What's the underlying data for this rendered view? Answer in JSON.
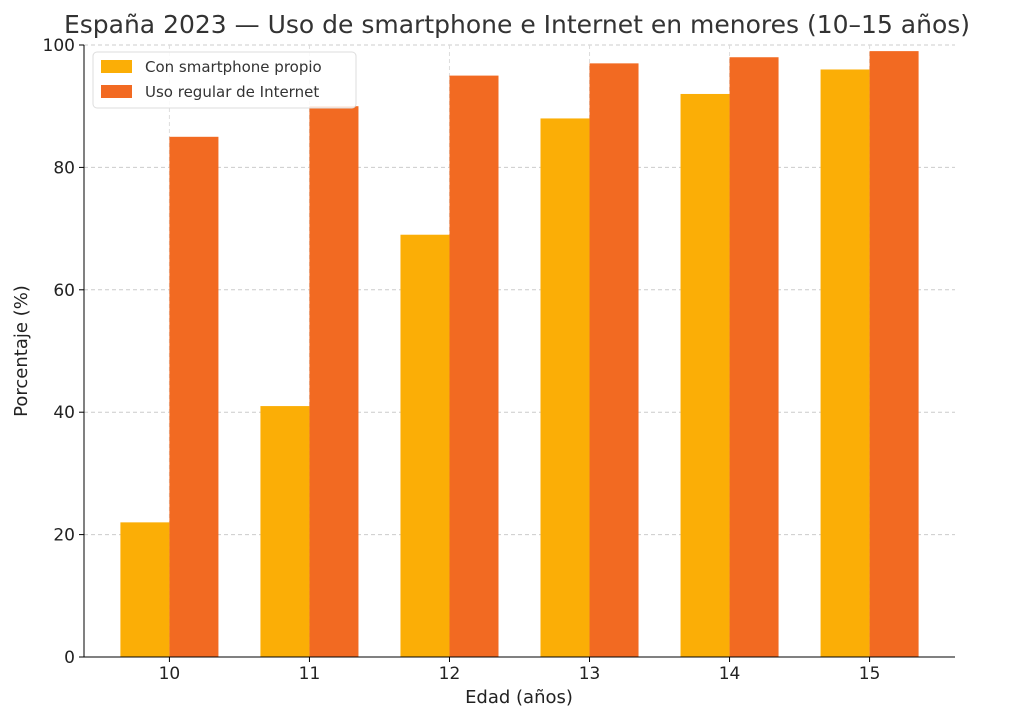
{
  "chart_data": {
    "type": "bar",
    "title": "España 2023 — Uso de smartphone e Internet en menores (10–15 años)",
    "xlabel": "Edad (años)",
    "ylabel": "Porcentaje (%)",
    "categories": [
      "10",
      "11",
      "12",
      "13",
      "14",
      "15"
    ],
    "series": [
      {
        "name": "Con smartphone propio",
        "values": [
          22,
          41,
          69,
          88,
          92,
          96
        ],
        "color": "#FBAE06"
      },
      {
        "name": "Uso regular de Internet",
        "values": [
          85,
          90,
          95,
          97,
          98,
          99
        ],
        "color": "#F26A22"
      }
    ],
    "ylim": [
      0,
      100
    ],
    "yticks": [
      "0",
      "20",
      "40",
      "60",
      "80",
      "100"
    ],
    "grid": true,
    "legend_position": "top-left"
  }
}
